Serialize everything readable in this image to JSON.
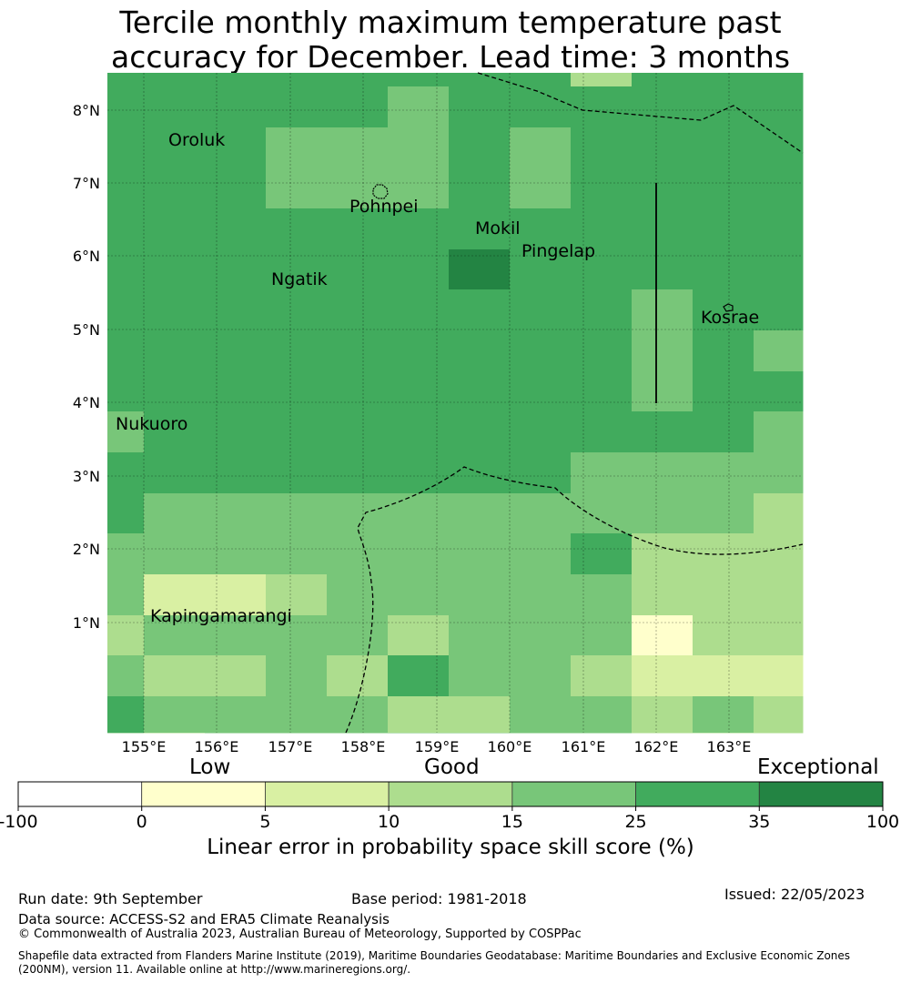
{
  "title_line1": "Tercile monthly maximum temperature past",
  "title_line2": "accuracy for December. Lead time: 3 months",
  "map": {
    "lon_labels": [
      "155°E",
      "156°E",
      "157°E",
      "158°E",
      "159°E",
      "160°E",
      "161°E",
      "162°E",
      "163°E"
    ],
    "lat_labels": [
      "8°N",
      "7°N",
      "6°N",
      "5°N",
      "4°N",
      "3°N",
      "2°N",
      "1°N"
    ],
    "places": [
      {
        "name": "Oroluk"
      },
      {
        "name": "Pohnpei"
      },
      {
        "name": "Mokil"
      },
      {
        "name": "Pingelap"
      },
      {
        "name": "Ngatik"
      },
      {
        "name": "Kosrae"
      },
      {
        "name": "Nukuoro"
      },
      {
        "name": "Kapingamarangi"
      }
    ]
  },
  "colorbar": {
    "categories": [
      "Low",
      "Good",
      "Exceptional"
    ],
    "ticks": [
      "-100",
      "0",
      "5",
      "10",
      "15",
      "25",
      "35",
      "100"
    ],
    "colors": [
      "#ffffff",
      "#ffffcc",
      "#d9f0a3",
      "#addd8e",
      "#78c679",
      "#41ab5d",
      "#238443"
    ],
    "label": "Linear error in probability space skill score (%)"
  },
  "footer": {
    "run_date": "Run date: 9th September",
    "base_period": "Base period: 1981-2018",
    "issued": "Issued: 22/05/2023",
    "data_source": "Data source: ACCESS-S2 and ERA5 Climate Reanalysis",
    "copyright": "© Commonwealth of Australia 2023, Australian Bureau of Meteorology, Supported by COSPPac",
    "shapefile_line1": "Shapefile data extracted from Flanders Marine Institute (2019), Maritime Boundaries Geodatabase: Maritime Boundaries and Exclusive Economic Zones",
    "shapefile_line2": "(200NM), version 11. Available online at http://www.marineregions.org/."
  }
}
